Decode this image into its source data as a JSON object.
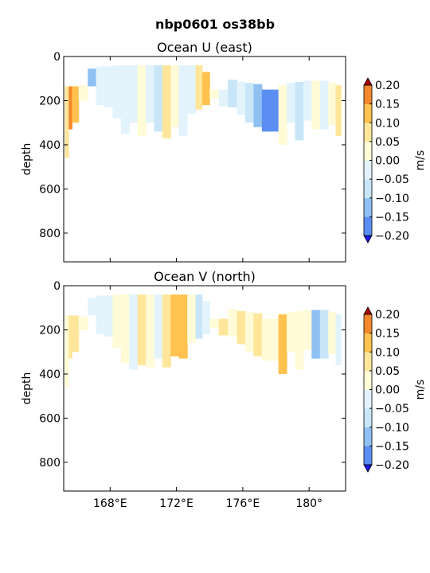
{
  "figure": {
    "suptitle": "nbp0601 os38bb"
  },
  "colors": {
    "levels": [
      -0.2,
      -0.15,
      -0.1,
      -0.05,
      0.0,
      0.05,
      0.1,
      0.15,
      0.2
    ],
    "fills": [
      "#3a52f2",
      "#5b8ef2",
      "#8fc0f2",
      "#c8e6f8",
      "#e2f3fb",
      "#fffbd6",
      "#ffe69a",
      "#ffc24e",
      "#f4882c",
      "#d93c14"
    ],
    "under": "#1a1aee",
    "over": "#b00000"
  },
  "chart_data": [
    {
      "type": "heatmap",
      "title": "Ocean U (east)",
      "xlabel": "",
      "ylabel": "depth",
      "colorbar_label": "m/s",
      "colorbar_ticks": [
        "0.20",
        "0.15",
        "0.10",
        "0.05",
        "0.00",
        "−0.05",
        "−0.10",
        "−0.15",
        "−0.20"
      ],
      "xlim": [
        165.2,
        182.2
      ],
      "ylim": [
        930,
        0
      ],
      "yticks": [
        "0",
        "200",
        "400",
        "600",
        "800"
      ],
      "ytick_values": [
        0,
        200,
        400,
        600,
        800
      ],
      "xtick_values": [
        168,
        172,
        176,
        180
      ],
      "xticks": [],
      "columns": [
        {
          "lon": 165.4,
          "top": 135,
          "bottom": 460,
          "v": 0.06
        },
        {
          "lon": 165.6,
          "top": 135,
          "bottom": 330,
          "v": 0.15
        },
        {
          "lon": 165.8,
          "top": 135,
          "bottom": 300,
          "v": 0.12
        },
        {
          "lon": 166.4,
          "top": 130,
          "bottom": 200,
          "v": 0.02
        },
        {
          "lon": 166.9,
          "top": 55,
          "bottom": 135,
          "v": -0.12
        },
        {
          "lon": 167.4,
          "top": 45,
          "bottom": 220,
          "v": -0.05
        },
        {
          "lon": 167.9,
          "top": 45,
          "bottom": 230,
          "v": -0.03
        },
        {
          "lon": 168.4,
          "top": 40,
          "bottom": 280,
          "v": -0.04
        },
        {
          "lon": 168.9,
          "top": 40,
          "bottom": 350,
          "v": -0.02
        },
        {
          "lon": 169.4,
          "top": 40,
          "bottom": 300,
          "v": -0.05
        },
        {
          "lon": 169.9,
          "top": 40,
          "bottom": 360,
          "v": 0.02
        },
        {
          "lon": 170.4,
          "top": 40,
          "bottom": 300,
          "v": -0.04
        },
        {
          "lon": 170.9,
          "top": 40,
          "bottom": 340,
          "v": -0.06
        },
        {
          "lon": 171.4,
          "top": 40,
          "bottom": 370,
          "v": 0.05
        },
        {
          "lon": 171.9,
          "top": 40,
          "bottom": 320,
          "v": 0.03
        },
        {
          "lon": 172.4,
          "top": 40,
          "bottom": 360,
          "v": -0.03
        },
        {
          "lon": 172.9,
          "top": 40,
          "bottom": 260,
          "v": -0.02
        },
        {
          "lon": 173.4,
          "top": 40,
          "bottom": 240,
          "v": 0.06
        },
        {
          "lon": 173.7,
          "top": 70,
          "bottom": 220,
          "v": 0.13
        },
        {
          "lon": 174.3,
          "top": 150,
          "bottom": 190,
          "v": 0.03
        },
        {
          "lon": 174.8,
          "top": 150,
          "bottom": 225,
          "v": -0.04
        },
        {
          "lon": 175.4,
          "top": 105,
          "bottom": 230,
          "v": -0.06
        },
        {
          "lon": 175.9,
          "top": 115,
          "bottom": 265,
          "v": -0.03
        },
        {
          "lon": 176.4,
          "top": 120,
          "bottom": 300,
          "v": -0.08
        },
        {
          "lon": 176.9,
          "top": 125,
          "bottom": 320,
          "v": -0.13
        },
        {
          "lon": 177.4,
          "top": 150,
          "bottom": 340,
          "v": -0.2
        },
        {
          "lon": 177.9,
          "top": 150,
          "bottom": 340,
          "v": -0.16
        },
        {
          "lon": 178.4,
          "top": 130,
          "bottom": 400,
          "v": 0.04
        },
        {
          "lon": 178.9,
          "top": 120,
          "bottom": 300,
          "v": -0.04
        },
        {
          "lon": 179.4,
          "top": 115,
          "bottom": 380,
          "v": -0.06
        },
        {
          "lon": 179.9,
          "top": 110,
          "bottom": 290,
          "v": -0.02
        },
        {
          "lon": 180.4,
          "top": 110,
          "bottom": 330,
          "v": 0.03
        },
        {
          "lon": 180.9,
          "top": 110,
          "bottom": 330,
          "v": -0.03
        },
        {
          "lon": 181.4,
          "top": 120,
          "bottom": 310,
          "v": 0.01
        },
        {
          "lon": 181.8,
          "top": 130,
          "bottom": 360,
          "v": 0.06
        }
      ]
    },
    {
      "type": "heatmap",
      "title": "Ocean V (north)",
      "xlabel": "",
      "ylabel": "depth",
      "colorbar_label": "m/s",
      "colorbar_ticks": [
        "0.20",
        "0.15",
        "0.10",
        "0.05",
        "0.00",
        "−0.05",
        "−0.10",
        "−0.15",
        "−0.20"
      ],
      "xlim": [
        165.2,
        182.2
      ],
      "ylim": [
        930,
        0
      ],
      "yticks": [
        "0",
        "200",
        "400",
        "600",
        "800"
      ],
      "ytick_values": [
        0,
        200,
        400,
        600,
        800
      ],
      "xtick_values": [
        168,
        172,
        176,
        180
      ],
      "xticks": [
        "168°E",
        "172°E",
        "176°E",
        "180°"
      ],
      "columns": [
        {
          "lon": 165.4,
          "top": 135,
          "bottom": 460,
          "v": 0.04
        },
        {
          "lon": 165.6,
          "top": 135,
          "bottom": 330,
          "v": 0.05
        },
        {
          "lon": 165.8,
          "top": 135,
          "bottom": 300,
          "v": 0.07
        },
        {
          "lon": 166.4,
          "top": 140,
          "bottom": 200,
          "v": 0.02
        },
        {
          "lon": 166.9,
          "top": 55,
          "bottom": 135,
          "v": -0.03
        },
        {
          "lon": 167.4,
          "top": 45,
          "bottom": 220,
          "v": -0.04
        },
        {
          "lon": 167.9,
          "top": 45,
          "bottom": 230,
          "v": -0.03
        },
        {
          "lon": 168.4,
          "top": 40,
          "bottom": 280,
          "v": 0.02
        },
        {
          "lon": 168.9,
          "top": 40,
          "bottom": 350,
          "v": 0.03
        },
        {
          "lon": 169.4,
          "top": 40,
          "bottom": 380,
          "v": -0.02
        },
        {
          "lon": 169.9,
          "top": 40,
          "bottom": 360,
          "v": 0.07
        },
        {
          "lon": 170.4,
          "top": 40,
          "bottom": 370,
          "v": 0.03
        },
        {
          "lon": 170.9,
          "top": 40,
          "bottom": 330,
          "v": -0.05
        },
        {
          "lon": 171.4,
          "top": 40,
          "bottom": 370,
          "v": 0.09
        },
        {
          "lon": 171.9,
          "top": 40,
          "bottom": 320,
          "v": 0.13
        },
        {
          "lon": 172.4,
          "top": 40,
          "bottom": 330,
          "v": 0.11
        },
        {
          "lon": 172.9,
          "top": 40,
          "bottom": 260,
          "v": 0.03
        },
        {
          "lon": 173.4,
          "top": 40,
          "bottom": 240,
          "v": -0.06
        },
        {
          "lon": 173.7,
          "top": 70,
          "bottom": 220,
          "v": -0.03
        },
        {
          "lon": 174.3,
          "top": 150,
          "bottom": 190,
          "v": 0.02
        },
        {
          "lon": 174.8,
          "top": 150,
          "bottom": 225,
          "v": 0.05
        },
        {
          "lon": 175.4,
          "top": 105,
          "bottom": 230,
          "v": 0.02
        },
        {
          "lon": 175.9,
          "top": 115,
          "bottom": 265,
          "v": 0.06
        },
        {
          "lon": 176.4,
          "top": 120,
          "bottom": 300,
          "v": 0.03
        },
        {
          "lon": 176.9,
          "top": 125,
          "bottom": 320,
          "v": 0.05
        },
        {
          "lon": 177.4,
          "top": 150,
          "bottom": 340,
          "v": 0.02
        },
        {
          "lon": 177.9,
          "top": 150,
          "bottom": 340,
          "v": 0.03
        },
        {
          "lon": 178.4,
          "top": 130,
          "bottom": 400,
          "v": 0.13
        },
        {
          "lon": 178.9,
          "top": 120,
          "bottom": 300,
          "v": 0.04
        },
        {
          "lon": 179.4,
          "top": 115,
          "bottom": 380,
          "v": 0.03
        },
        {
          "lon": 179.9,
          "top": 110,
          "bottom": 290,
          "v": 0.01
        },
        {
          "lon": 180.4,
          "top": 110,
          "bottom": 330,
          "v": -0.14
        },
        {
          "lon": 180.9,
          "top": 110,
          "bottom": 330,
          "v": -0.07
        },
        {
          "lon": 181.4,
          "top": 120,
          "bottom": 310,
          "v": 0.03
        },
        {
          "lon": 181.8,
          "top": 130,
          "bottom": 360,
          "v": -0.03
        }
      ]
    }
  ]
}
